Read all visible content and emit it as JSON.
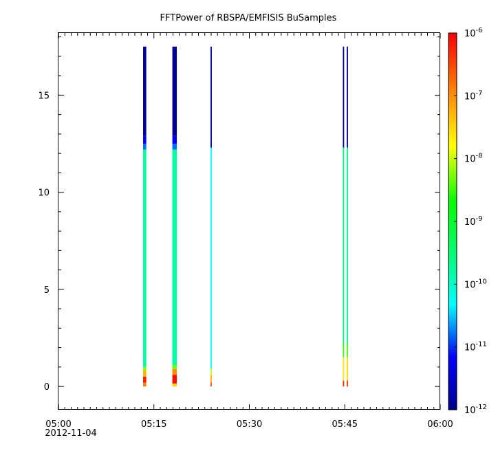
{
  "chart_data": {
    "type": "heatmap",
    "title": "FFTPower of RBSPA/EMFISIS  BuSamples",
    "xlabel": "",
    "ylabel": "",
    "x_range": [
      "05:00",
      "06:00"
    ],
    "x_ticks": [
      {
        "value": 0,
        "label": "05:00",
        "sublabel": "2012-11-04"
      },
      {
        "value": 15,
        "label": "05:15",
        "sublabel": ""
      },
      {
        "value": 30,
        "label": "05:30",
        "sublabel": ""
      },
      {
        "value": 45,
        "label": "05:45",
        "sublabel": ""
      },
      {
        "value": 60,
        "label": "06:00",
        "sublabel": ""
      }
    ],
    "x_minor_step_minutes": 1,
    "y_range": [
      -1.2,
      18.2
    ],
    "y_ticks": [
      0,
      5,
      10,
      15
    ],
    "colorbar": {
      "scale": "log",
      "range": [
        1e-12,
        1e-06
      ],
      "ticks": [
        {
          "base": "10",
          "exp": "-12",
          "value": 1e-12
        },
        {
          "base": "10",
          "exp": "-11",
          "value": 1e-11
        },
        {
          "base": "10",
          "exp": "-10",
          "value": 1e-10
        },
        {
          "base": "10",
          "exp": "-9",
          "value": 1e-09
        },
        {
          "base": "10",
          "exp": "-8",
          "value": 1e-08
        },
        {
          "base": "10",
          "exp": "-7",
          "value": 1e-07
        },
        {
          "base": "10",
          "exp": "-6",
          "value": 1e-06
        }
      ],
      "palette": [
        "#00008b",
        "#0000ff",
        "#00ffff",
        "#00ff80",
        "#00ff00",
        "#ffff00",
        "#ff8000",
        "#ff0000"
      ]
    },
    "series": [
      {
        "x_start": 13.3,
        "x_end": 13.8,
        "bands": [
          {
            "y0": 0.0,
            "y1": 0.2,
            "log_power": -6.9
          },
          {
            "y0": 0.2,
            "y1": 0.5,
            "log_power": -6.2
          },
          {
            "y0": 0.5,
            "y1": 0.8,
            "log_power": -7.3
          },
          {
            "y0": 0.8,
            "y1": 1.0,
            "log_power": -8.2
          },
          {
            "y0": 1.0,
            "y1": 12.2,
            "log_power": -9.8
          },
          {
            "y0": 12.2,
            "y1": 12.5,
            "log_power": -10.8
          },
          {
            "y0": 12.5,
            "y1": 12.9,
            "log_power": -11.2
          },
          {
            "y0": 12.9,
            "y1": 17.5,
            "log_power": -11.9
          }
        ]
      },
      {
        "x_start": 17.9,
        "x_end": 18.6,
        "bands": [
          {
            "y0": 0.0,
            "y1": 0.15,
            "log_power": -7.5
          },
          {
            "y0": 0.15,
            "y1": 0.6,
            "log_power": -6.1
          },
          {
            "y0": 0.6,
            "y1": 0.9,
            "log_power": -7.0
          },
          {
            "y0": 0.9,
            "y1": 1.1,
            "log_power": -8.3
          },
          {
            "y0": 1.1,
            "y1": 12.2,
            "log_power": -9.8
          },
          {
            "y0": 12.2,
            "y1": 12.5,
            "log_power": -10.8
          },
          {
            "y0": 12.5,
            "y1": 12.9,
            "log_power": -11.2
          },
          {
            "y0": 12.9,
            "y1": 17.5,
            "log_power": -11.9
          }
        ]
      },
      {
        "x_start": 23.9,
        "x_end": 24.1,
        "bands": [
          {
            "y0": 0.0,
            "y1": 0.2,
            "log_power": -6.5
          },
          {
            "y0": 0.2,
            "y1": 0.6,
            "log_power": -7.2
          },
          {
            "y0": 0.6,
            "y1": 0.9,
            "log_power": -8.0
          },
          {
            "y0": 0.9,
            "y1": 12.3,
            "log_power": -10.3
          },
          {
            "y0": 12.3,
            "y1": 17.5,
            "log_power": -11.9
          }
        ]
      },
      {
        "x_start": 44.7,
        "x_end": 44.9,
        "bands": [
          {
            "y0": 0.0,
            "y1": 0.3,
            "log_power": -6.3
          },
          {
            "y0": 0.3,
            "y1": 1.5,
            "log_power": -7.6
          },
          {
            "y0": 1.5,
            "y1": 2.2,
            "log_power": -8.5
          },
          {
            "y0": 2.2,
            "y1": 12.3,
            "log_power": -9.6
          },
          {
            "y0": 12.3,
            "y1": 17.5,
            "log_power": -11.9
          }
        ]
      },
      {
        "x_start": 45.3,
        "x_end": 45.5,
        "bands": [
          {
            "y0": 0.0,
            "y1": 0.3,
            "log_power": -6.3
          },
          {
            "y0": 0.3,
            "y1": 1.5,
            "log_power": -7.5
          },
          {
            "y0": 1.5,
            "y1": 2.2,
            "log_power": -8.5
          },
          {
            "y0": 2.2,
            "y1": 12.3,
            "log_power": -9.7
          },
          {
            "y0": 12.3,
            "y1": 17.5,
            "log_power": -11.9
          }
        ]
      }
    ]
  }
}
